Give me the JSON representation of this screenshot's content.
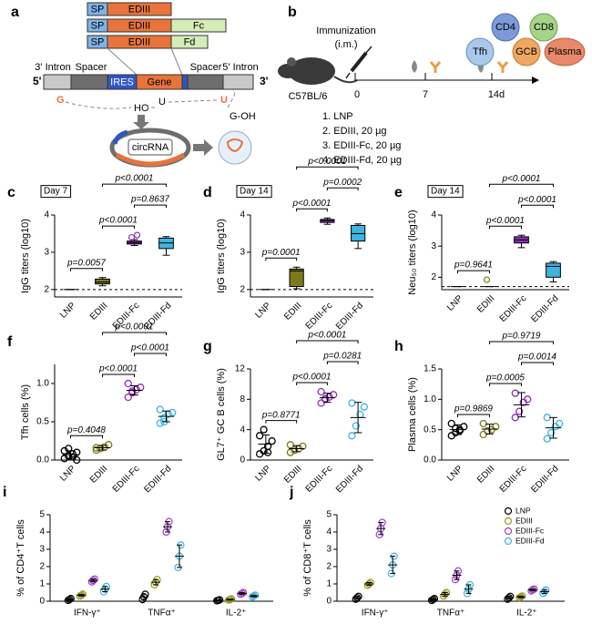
{
  "panel_a": {
    "label": "a",
    "row1": [
      "SP",
      "EDIII"
    ],
    "row2": [
      "SP",
      "EDIII",
      "Fc"
    ],
    "row3": [
      "SP",
      "EDIII",
      "Fd"
    ],
    "ends": [
      "5'",
      "3'"
    ],
    "segments": [
      "3' Intron",
      "Spacer",
      "IRES",
      "Gene",
      "Spacer",
      "5' Intron"
    ],
    "ligation": [
      "G",
      "HO",
      "U",
      "U",
      "G-OH"
    ],
    "product": "circRNA"
  },
  "panel_b": {
    "label": "b",
    "route": [
      "Immunization",
      "(i.m.)"
    ],
    "strain": "C57BL/6",
    "timeline": [
      "0",
      "7",
      "14d"
    ],
    "groups": [
      "1. LNP",
      "2. EDIII, 20 µg",
      "3. EDIII-Fc, 20 µg",
      "4. EDIII-Fd, 20 µg"
    ],
    "cells": [
      "CD4",
      "CD8",
      "Tfh",
      "GCB",
      "Plasma"
    ]
  },
  "chart_data": [
    {
      "type": "box",
      "panel": "c",
      "tag": "Day 7",
      "ylabel": "IgG titers (log10)",
      "categories": [
        "LNP",
        "EDIII",
        "EDIII-Fc",
        "EDIII-Fd"
      ],
      "colors": [
        "#000000",
        "#7b7b1a",
        "#8e2fb5",
        "#3db5e0"
      ],
      "ylim": [
        1.8,
        4
      ],
      "yticks": [
        2,
        3,
        4
      ],
      "baseline": 2,
      "boxes": [
        {
          "min": 2,
          "q1": 2,
          "median": 2,
          "q3": 2,
          "max": 2
        },
        {
          "min": 2.1,
          "q1": 2.15,
          "median": 2.2,
          "q3": 2.28,
          "max": 2.32
        },
        {
          "min": 3.18,
          "q1": 3.22,
          "median": 3.26,
          "q3": 3.3,
          "max": 3.34
        },
        {
          "min": 2.92,
          "q1": 3.1,
          "median": 3.25,
          "q3": 3.38,
          "max": 3.42
        }
      ],
      "outliers": [
        [],
        [],
        [
          3.4,
          3.46
        ],
        []
      ],
      "comparisons": [
        {
          "groups": [
            "LNP",
            "EDIII"
          ],
          "label": "p=0.0057"
        },
        {
          "groups": [
            "EDIII",
            "EDIII-Fc"
          ],
          "label": "p<0.0001"
        },
        {
          "groups": [
            "EDIII-Fc",
            "EDIII-Fd"
          ],
          "label": "p=0.8637"
        },
        {
          "groups": [
            "EDIII",
            "EDIII-Fd"
          ],
          "label": "p<0.0001"
        }
      ]
    },
    {
      "type": "box",
      "panel": "d",
      "tag": "Day 14",
      "ylabel": "IgG titers (log10)",
      "categories": [
        "LNP",
        "EDIII",
        "EDIII-Fc",
        "EDIII-Fd"
      ],
      "colors": [
        "#000000",
        "#7b7b1a",
        "#8e2fb5",
        "#3db5e0"
      ],
      "ylim": [
        1.8,
        4
      ],
      "yticks": [
        2,
        3,
        4
      ],
      "baseline": 2,
      "boxes": [
        {
          "min": 2,
          "q1": 2,
          "median": 2,
          "q3": 2,
          "max": 2
        },
        {
          "min": 2.02,
          "q1": 2.08,
          "median": 2.5,
          "q3": 2.55,
          "max": 2.6
        },
        {
          "min": 3.75,
          "q1": 3.8,
          "median": 3.85,
          "q3": 3.88,
          "max": 3.92
        },
        {
          "min": 3.1,
          "q1": 3.3,
          "median": 3.5,
          "q3": 3.72,
          "max": 3.76
        }
      ],
      "outliers": [
        [],
        [],
        [],
        []
      ],
      "comparisons": [
        {
          "groups": [
            "LNP",
            "EDIII"
          ],
          "label": "p=0.0001"
        },
        {
          "groups": [
            "EDIII",
            "EDIII-Fc"
          ],
          "label": "p<0.0001"
        },
        {
          "groups": [
            "EDIII-Fc",
            "EDIII-Fd"
          ],
          "label": "p=0.0002"
        },
        {
          "groups": [
            "EDIII",
            "EDIII-Fd"
          ],
          "label": "p<0.0001"
        }
      ]
    },
    {
      "type": "box",
      "panel": "e",
      "tag": "Day 14",
      "ylabel": "Neu₅₀ titers (log10)",
      "categories": [
        "LNP",
        "EDIII",
        "EDIII-Fc",
        "EDIII-Fd"
      ],
      "colors": [
        "#000000",
        "#7b7b1a",
        "#8e2fb5",
        "#3db5e0"
      ],
      "ylim": [
        1.6,
        4
      ],
      "yticks": [
        2,
        3,
        4
      ],
      "baseline": 1.7,
      "boxes": [
        {
          "min": 1.7,
          "q1": 1.7,
          "median": 1.7,
          "q3": 1.7,
          "max": 1.7
        },
        {
          "min": 1.7,
          "q1": 1.7,
          "median": 1.7,
          "q3": 1.7,
          "max": 1.7
        },
        {
          "min": 2.95,
          "q1": 3.1,
          "median": 3.2,
          "q3": 3.3,
          "max": 3.35
        },
        {
          "min": 1.85,
          "q1": 2.0,
          "median": 2.35,
          "q3": 2.45,
          "max": 2.5
        }
      ],
      "outliers": [
        [],
        [
          1.92
        ],
        [],
        []
      ],
      "comparisons": [
        {
          "groups": [
            "LNP",
            "EDIII"
          ],
          "label": "p=0.9641"
        },
        {
          "groups": [
            "EDIII",
            "EDIII-Fc"
          ],
          "label": "p<0.0001"
        },
        {
          "groups": [
            "EDIII-Fc",
            "EDIII-Fd"
          ],
          "label": "p<0.0001"
        },
        {
          "groups": [
            "EDIII",
            "EDIII-Fd"
          ],
          "label": "p<0.0001"
        }
      ]
    },
    {
      "type": "dot",
      "panel": "f",
      "ylabel": "Tfh cells (%)",
      "categories": [
        "LNP",
        "EDIII",
        "EDIII-Fc",
        "EDIII-Fd"
      ],
      "colors": [
        "#000000",
        "#7b7b1a",
        "#8e2fb5",
        "#3db5e0"
      ],
      "ylim": [
        0,
        1.25
      ],
      "yticks": [
        {
          "value": 0,
          "label": "0.0"
        },
        {
          "value": 0.5,
          "label": "0.5"
        },
        {
          "value": 1,
          "label": "1.0"
        }
      ],
      "points": [
        [
          0.02,
          0.05,
          0.08,
          0.1,
          0.12,
          0.15,
          0.04,
          0
        ],
        [
          0.13,
          0.15,
          0.17,
          0.2,
          0.16
        ],
        [
          0.82,
          0.88,
          0.92,
          0.95,
          1.0,
          0.9
        ],
        [
          0.48,
          0.55,
          0.6,
          0.62,
          0.66,
          0.5
        ]
      ],
      "means": [
        0.07,
        0.16,
        0.91,
        0.57
      ],
      "errors": [
        0.05,
        0.03,
        0.06,
        0.07
      ],
      "comparisons": [
        {
          "groups": [
            "LNP",
            "EDIII"
          ],
          "label": "p=0.4048"
        },
        {
          "groups": [
            "EDIII",
            "EDIII-Fc"
          ],
          "label": "p<0.0001"
        },
        {
          "groups": [
            "EDIII-Fc",
            "EDIII-Fd"
          ],
          "label": "p<0.0001"
        },
        {
          "groups": [
            "EDIII",
            "EDIII-Fd"
          ],
          "label": "p<0.0001"
        }
      ]
    },
    {
      "type": "dot",
      "panel": "g",
      "ylabel": "GL7⁺ GC B cells (%)",
      "categories": [
        "LNP",
        "EDIII",
        "EDIII-Fc",
        "EDIII-Fd"
      ],
      "colors": [
        "#000000",
        "#7b7b1a",
        "#8e2fb5",
        "#3db5e0"
      ],
      "ylim": [
        0,
        12
      ],
      "yticks": [
        0,
        4,
        8,
        12
      ],
      "points": [
        [
          0.8,
          1.2,
          1.8,
          2.5,
          3.2,
          4.0,
          1.0
        ],
        [
          1.0,
          1.3,
          1.5,
          1.8,
          2.0
        ],
        [
          7.5,
          8.0,
          8.3,
          8.6,
          9.0,
          8.1
        ],
        [
          3.2,
          4.5,
          6.0,
          7.0,
          7.5
        ]
      ],
      "means": [
        2.1,
        1.5,
        8.2,
        5.6
      ],
      "errors": [
        1.2,
        0.4,
        0.6,
        2.0
      ],
      "comparisons": [
        {
          "groups": [
            "LNP",
            "EDIII"
          ],
          "label": "p=0.8771"
        },
        {
          "groups": [
            "EDIII",
            "EDIII-Fc"
          ],
          "label": "p<0.0001"
        },
        {
          "groups": [
            "EDIII-Fc",
            "EDIII-Fd"
          ],
          "label": "p=0.0281"
        },
        {
          "groups": [
            "EDIII",
            "EDIII-Fd"
          ],
          "label": "p<0.0001"
        }
      ]
    },
    {
      "type": "dot",
      "panel": "h",
      "ylabel": "Plasma cells (%)",
      "categories": [
        "LNP",
        "EDIII",
        "EDIII-Fc",
        "EDIII-Fd"
      ],
      "colors": [
        "#000000",
        "#7b7b1a",
        "#8e2fb5",
        "#3db5e0"
      ],
      "ylim": [
        0,
        1.5
      ],
      "yticks": [
        {
          "value": 0,
          "label": "0.0"
        },
        {
          "value": 0.5,
          "label": "0.5"
        },
        {
          "value": 1,
          "label": "1.0"
        },
        {
          "value": 1.5,
          "label": "1.5"
        }
      ],
      "points": [
        [
          0.4,
          0.45,
          0.5,
          0.55,
          0.6,
          0.52,
          0.48
        ],
        [
          0.42,
          0.48,
          0.5,
          0.55,
          0.6
        ],
        [
          0.7,
          0.8,
          0.95,
          1.0,
          1.1
        ],
        [
          0.35,
          0.45,
          0.55,
          0.6,
          0.7
        ]
      ],
      "means": [
        0.5,
        0.51,
        0.91,
        0.53
      ],
      "errors": [
        0.08,
        0.08,
        0.2,
        0.17
      ],
      "comparisons": [
        {
          "groups": [
            "LNP",
            "EDIII"
          ],
          "label": "p=0.9869"
        },
        {
          "groups": [
            "EDIII",
            "EDIII-Fc"
          ],
          "label": "p=0.0005"
        },
        {
          "groups": [
            "EDIII-Fc",
            "EDIII-Fd"
          ],
          "label": "p=0.0014"
        },
        {
          "groups": [
            "EDIII",
            "EDIII-Fd"
          ],
          "label": "p=0.9719"
        }
      ]
    },
    {
      "type": "grouped",
      "panel": "i",
      "ylabel": "% of CD4⁺T cells",
      "categories": [
        "IFN-γ⁺",
        "TNFα⁺",
        "IL-2⁺"
      ],
      "ylim": [
        0,
        5
      ],
      "yticks": [
        0,
        1,
        2,
        3,
        4,
        5
      ],
      "series": [
        {
          "name": "LNP",
          "color": "#000000",
          "values": [
            0.1,
            0.25,
            0.05
          ],
          "errors": [
            0.05,
            0.15,
            0.03
          ],
          "points": [
            [
              0.05,
              0.1,
              0.15
            ],
            [
              0.1,
              0.25,
              0.4
            ],
            [
              0.03,
              0.05,
              0.08
            ]
          ]
        },
        {
          "name": "EDIII",
          "color": "#9a9a1a",
          "values": [
            0.35,
            1.1,
            0.1
          ],
          "errors": [
            0.05,
            0.15,
            0.03
          ],
          "points": [
            [
              0.3,
              0.35,
              0.4
            ],
            [
              0.95,
              1.1,
              1.25
            ],
            [
              0.07,
              0.1,
              0.13
            ]
          ]
        },
        {
          "name": "EDIII-Fc",
          "color": "#a63cc8",
          "values": [
            1.2,
            4.3,
            0.45
          ],
          "errors": [
            0.08,
            0.3,
            0.05
          ],
          "points": [
            [
              1.12,
              1.2,
              1.28
            ],
            [
              4.0,
              4.3,
              4.6
            ],
            [
              0.4,
              0.45,
              0.5
            ]
          ]
        },
        {
          "name": "EDIII-Fd",
          "color": "#3db5e0",
          "values": [
            0.7,
            2.6,
            0.3
          ],
          "errors": [
            0.15,
            0.65,
            0.05
          ],
          "points": [
            [
              0.55,
              0.7,
              0.85
            ],
            [
              1.95,
              2.6,
              3.25
            ],
            [
              0.25,
              0.3,
              0.35
            ]
          ]
        }
      ]
    },
    {
      "type": "grouped",
      "panel": "j",
      "ylabel": "% of CD8⁺T cells",
      "categories": [
        "IFN-γ⁺",
        "TNFα⁺",
        "IL-2⁺"
      ],
      "ylim": [
        0,
        5
      ],
      "yticks": [
        0,
        1,
        2,
        3,
        4,
        5
      ],
      "legend": "upper right",
      "series": [
        {
          "name": "LNP",
          "color": "#000000",
          "values": [
            0.2,
            0.1,
            0.2
          ],
          "errors": [
            0.08,
            0.05,
            0.08
          ],
          "points": [
            [
              0.12,
              0.2,
              0.28
            ],
            [
              0.05,
              0.1,
              0.15
            ],
            [
              0.12,
              0.2,
              0.28
            ]
          ]
        },
        {
          "name": "EDIII",
          "color": "#9a9a1a",
          "values": [
            1.0,
            0.4,
            0.25
          ],
          "errors": [
            0.08,
            0.1,
            0.05
          ],
          "points": [
            [
              0.92,
              1.0,
              1.08
            ],
            [
              0.3,
              0.4,
              0.5
            ],
            [
              0.2,
              0.25,
              0.3
            ]
          ]
        },
        {
          "name": "EDIII-Fc",
          "color": "#a63cc8",
          "values": [
            4.2,
            1.5,
            0.65
          ],
          "errors": [
            0.35,
            0.25,
            0.05
          ],
          "points": [
            [
              3.85,
              4.2,
              4.55
            ],
            [
              1.25,
              1.5,
              1.75
            ],
            [
              0.6,
              0.65,
              0.7
            ]
          ]
        },
        {
          "name": "EDIII-Fd",
          "color": "#3db5e0",
          "values": [
            2.1,
            0.7,
            0.55
          ],
          "errors": [
            0.5,
            0.25,
            0.1
          ],
          "points": [
            [
              1.6,
              2.1,
              2.6
            ],
            [
              0.45,
              0.7,
              0.95
            ],
            [
              0.45,
              0.55,
              0.65
            ]
          ]
        }
      ]
    }
  ]
}
